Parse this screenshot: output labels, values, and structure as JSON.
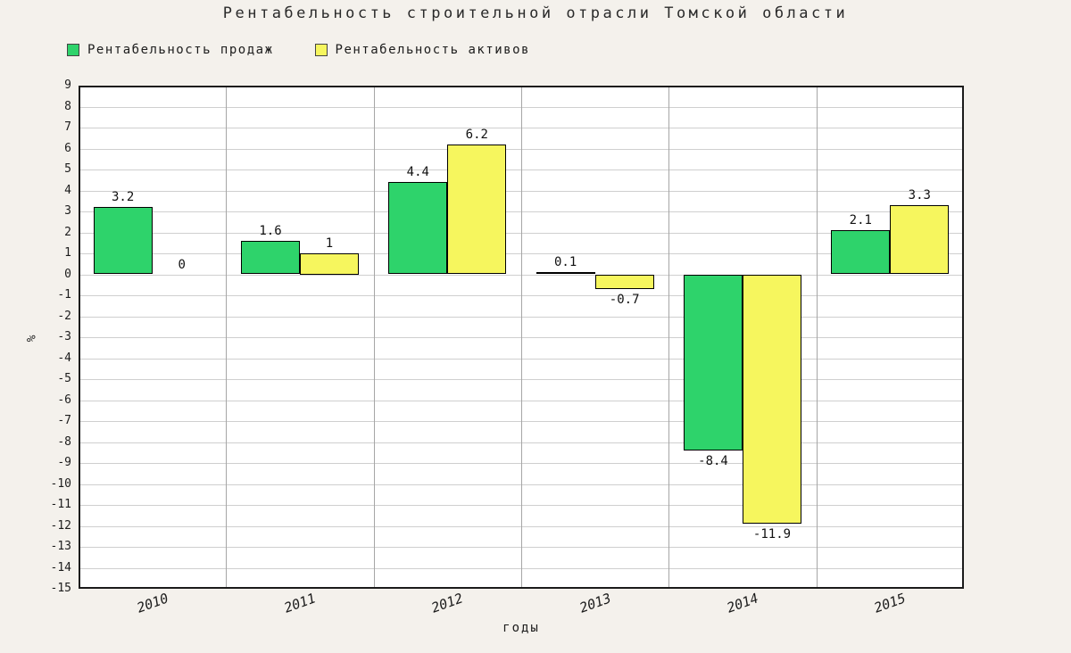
{
  "title": "Рентабельность строительной отрасли Томской области",
  "chart_data": {
    "type": "bar",
    "title": "Рентабельность строительной отрасли Томской области",
    "categories": [
      "2010",
      "2011",
      "2012",
      "2013",
      "2014",
      "2015"
    ],
    "series": [
      {
        "name": "Рентабельность продаж",
        "color": "#2ed36b",
        "values": [
          3.2,
          1.6,
          4.4,
          0.1,
          -8.4,
          2.1
        ]
      },
      {
        "name": "Рентабельность активов",
        "color": "#f6f65e",
        "values": [
          0,
          1,
          6.2,
          -0.7,
          -11.9,
          3.3
        ]
      }
    ],
    "xlabel": "годы",
    "ylabel": "%",
    "ylim": [
      -15,
      9
    ],
    "ytick_step": 1,
    "grid": true,
    "legend_position": "top-left",
    "plot_background": "#ffffff",
    "page_background": "#f4f1ec"
  }
}
